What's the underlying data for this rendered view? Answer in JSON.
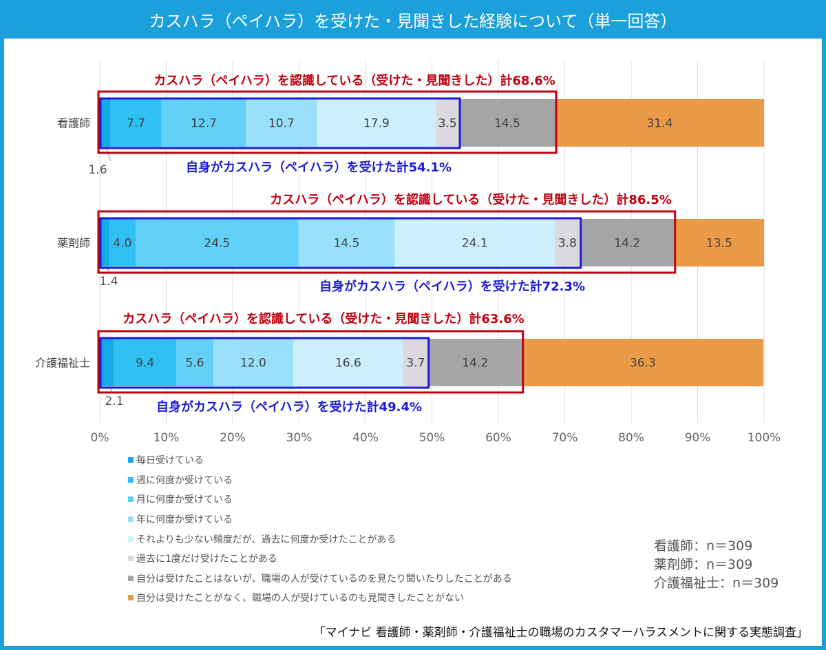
{
  "title": "カスハラ（ペイハラ）を受けた・見聞きした経験について（単一回答）",
  "chart_data": {
    "type": "bar",
    "orientation": "horizontal-stacked-100",
    "xlim": [
      0,
      100
    ],
    "x_ticks": [
      "0%",
      "10%",
      "20%",
      "30%",
      "40%",
      "50%",
      "60%",
      "70%",
      "80%",
      "90%",
      "100%"
    ],
    "categories": [
      "看護師",
      "薬剤師",
      "介護福祉士"
    ],
    "series": [
      {
        "name": "毎日受けている",
        "color": "#15a9e8",
        "values": [
          1.6,
          1.4,
          2.1
        ]
      },
      {
        "name": "週に何度か受けている",
        "color": "#2fc1f4",
        "values": [
          7.7,
          4.0,
          9.4
        ]
      },
      {
        "name": "月に何度か受けている",
        "color": "#63d0f8",
        "values": [
          12.7,
          24.5,
          5.6
        ]
      },
      {
        "name": "年に何度か受けている",
        "color": "#99e0fa",
        "values": [
          10.7,
          14.5,
          12.0
        ]
      },
      {
        "name": "それよりも少ない頻度だが、過去に何度か受けたことがある",
        "color": "#cdeffc",
        "values": [
          17.9,
          24.1,
          16.6
        ]
      },
      {
        "name": "過去に1度だけ受けたことがある",
        "color": "#dbd9dd",
        "values": [
          3.5,
          3.8,
          3.7
        ]
      },
      {
        "name": "自分は受けたことはないが、職場の人が受けているのを見たり聞いたりしたことがある",
        "color": "#a5a5a7",
        "values": [
          14.5,
          14.2,
          14.2
        ]
      },
      {
        "name": "自分は受けたことがなく、職場の人が受けているのも見聞きしたことがない",
        "color": "#eb9b48",
        "values": [
          31.4,
          13.5,
          36.3
        ]
      }
    ],
    "outside_labels": [
      "1.6",
      "1.4",
      "2.1"
    ],
    "annotations": {
      "recognized": [
        "カスハラ（ペイハラ）を認識している（受けた・見聞きした）計68.6%",
        "カスハラ（ペイハラ）を認識している（受けた・見聞きした）計86.5%",
        "カスハラ（ペイハラ）を認識している（受けた・見聞きした）計63.6%"
      ],
      "recognized_values": [
        68.6,
        86.5,
        63.6
      ],
      "experienced": [
        "自身がカスハラ（ペイハラ）を受けた計54.1%",
        "自身がカスハラ（ペイハラ）を受けた計72.3%",
        "自身がカスハラ（ペイハラ）を受けた計49.4%"
      ],
      "experienced_values": [
        54.1,
        72.3,
        49.4
      ]
    },
    "sample_sizes": [
      "看護師：n＝309",
      "薬剤師：n＝309",
      "介護福祉士：n＝309"
    ]
  },
  "source": "「マイナビ 看護師・薬剤師・介護福祉士の職場のカスタマーハラスメントに関する実態調査」"
}
